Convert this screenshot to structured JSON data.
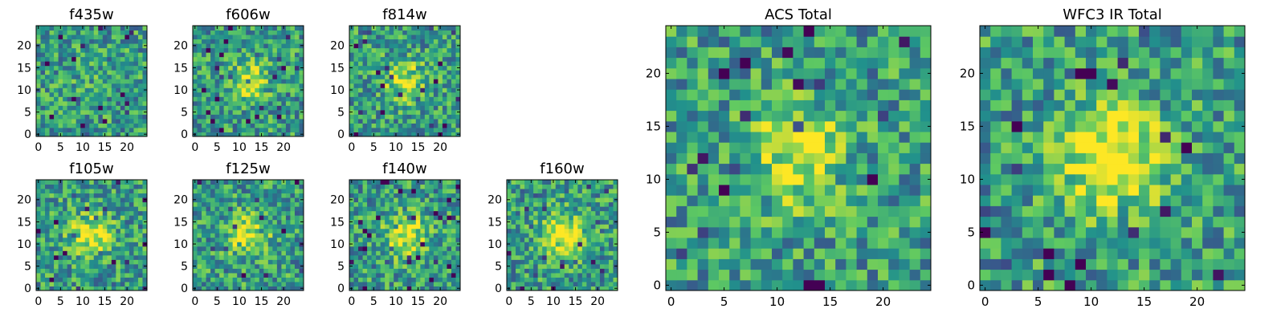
{
  "figure": {
    "colormap": [
      "#440154",
      "#3b528b",
      "#21918c",
      "#5ec962",
      "#fde725"
    ],
    "frame_color": "#000000"
  },
  "chart_data": [
    {
      "type": "heatmap",
      "title": "f435w",
      "size": 25,
      "xticks": [
        "0",
        "5",
        "10",
        "15",
        "20"
      ],
      "yticks": [
        "0",
        "5",
        "10",
        "15",
        "20"
      ],
      "blob": 0.05,
      "seed": 11
    },
    {
      "type": "heatmap",
      "title": "f606w",
      "size": 25,
      "xticks": [
        "0",
        "5",
        "10",
        "15",
        "20"
      ],
      "yticks": [
        "0",
        "5",
        "10",
        "15",
        "20"
      ],
      "blob": 0.35,
      "seed": 23
    },
    {
      "type": "heatmap",
      "title": "f814w",
      "size": 25,
      "xticks": [
        "0",
        "5",
        "10",
        "15",
        "20"
      ],
      "yticks": [
        "0",
        "5",
        "10",
        "15",
        "20"
      ],
      "blob": 0.35,
      "seed": 37
    },
    {
      "type": "heatmap",
      "title": "f105w",
      "size": 25,
      "xticks": [
        "0",
        "5",
        "10",
        "15",
        "20"
      ],
      "yticks": [
        "0",
        "5",
        "10",
        "15",
        "20"
      ],
      "blob": 0.45,
      "seed": 41
    },
    {
      "type": "heatmap",
      "title": "f125w",
      "size": 25,
      "xticks": [
        "0",
        "5",
        "10",
        "15",
        "20"
      ],
      "yticks": [
        "0",
        "5",
        "10",
        "15",
        "20"
      ],
      "blob": 0.4,
      "seed": 53
    },
    {
      "type": "heatmap",
      "title": "f140w",
      "size": 25,
      "xticks": [
        "0",
        "5",
        "10",
        "15",
        "20"
      ],
      "yticks": [
        "0",
        "5",
        "10",
        "15",
        "20"
      ],
      "blob": 0.45,
      "seed": 67
    },
    {
      "type": "heatmap",
      "title": "f160w",
      "size": 25,
      "xticks": [
        "0",
        "5",
        "10",
        "15",
        "20"
      ],
      "yticks": [
        "0",
        "5",
        "10",
        "15",
        "20"
      ],
      "blob": 0.55,
      "seed": 79
    },
    {
      "type": "heatmap",
      "title": "ACS Total",
      "size": 25,
      "xticks": [
        "0",
        "5",
        "10",
        "15",
        "20"
      ],
      "yticks": [
        "0",
        "5",
        "10",
        "15",
        "20"
      ],
      "blob": 0.4,
      "seed": 97
    },
    {
      "type": "heatmap",
      "title": "WFC3 IR Total",
      "size": 25,
      "xticks": [
        "0",
        "5",
        "10",
        "15",
        "20"
      ],
      "yticks": [
        "0",
        "5",
        "10",
        "15",
        "20"
      ],
      "blob": 0.6,
      "seed": 113
    }
  ]
}
